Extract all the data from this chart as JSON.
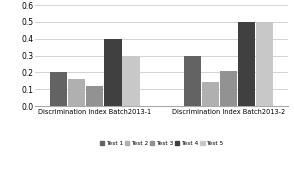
{
  "groups": [
    "Discrimination Index Batch2013-1",
    "Discrimination Index Batch2013-2"
  ],
  "series": [
    "Test 1",
    "Test 2",
    "Test 3",
    "Test 4",
    "Test 5"
  ],
  "values": [
    [
      0.2,
      0.16,
      0.12,
      0.4,
      0.3
    ],
    [
      0.3,
      0.14,
      0.21,
      0.5,
      0.5
    ]
  ],
  "colors": [
    "#636363",
    "#b0b0b0",
    "#929292",
    "#404040",
    "#c8c8c8"
  ],
  "ylim": [
    0,
    0.6
  ],
  "yticks": [
    0,
    0.1,
    0.2,
    0.3,
    0.4,
    0.5,
    0.6
  ],
  "background_color": "#ffffff",
  "grid_color": "#cccccc",
  "bar_width": 0.1,
  "group_centers": [
    0.38,
    1.12
  ],
  "xlim": [
    0.05,
    1.45
  ]
}
